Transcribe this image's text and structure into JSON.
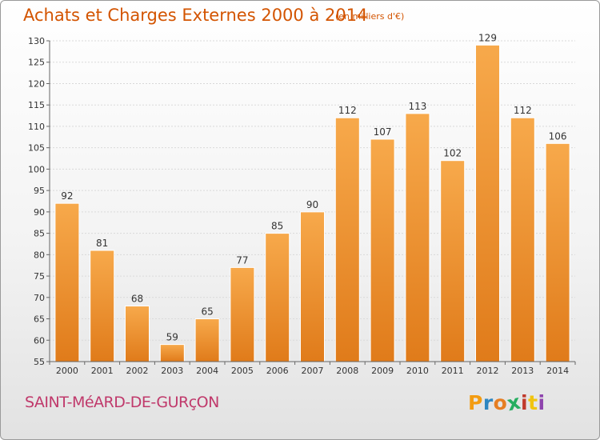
{
  "title": "Achats et Charges Externes 2000 à 2014",
  "subtitle": "(en milliers d'€)",
  "place": "SAINT-MéARD-DE-GURçON",
  "logo": {
    "letters": [
      "P",
      "r",
      "o",
      "x",
      "i",
      "t",
      "i"
    ],
    "colors": [
      "#f39c12",
      "#2e86c1",
      "#e67e22",
      "#27ae60",
      "#c0392b",
      "#f1c40f",
      "#8e44ad"
    ]
  },
  "colors": {
    "bar_light": "#f7a94b",
    "bar_dark": "#e07b1a",
    "title": "#d35400",
    "place": "#c0396b"
  },
  "chart_data": {
    "type": "bar",
    "categories": [
      "2000",
      "2001",
      "2002",
      "2003",
      "2004",
      "2005",
      "2006",
      "2007",
      "2008",
      "2009",
      "2010",
      "2011",
      "2012",
      "2013",
      "2014"
    ],
    "values": [
      92,
      81,
      68,
      59,
      65,
      77,
      85,
      90,
      112,
      107,
      113,
      102,
      129,
      112,
      106
    ],
    "data_labels": [
      "92",
      "81",
      "68",
      "59",
      "65",
      "77",
      "85",
      "90",
      "112",
      "107",
      "113",
      "102",
      "129",
      "112",
      "106"
    ],
    "yticks": [
      55,
      60,
      65,
      70,
      75,
      80,
      85,
      90,
      95,
      100,
      105,
      110,
      115,
      120,
      125,
      130
    ],
    "ylim": [
      55,
      130
    ],
    "xlabel": "",
    "ylabel": "",
    "grid": true
  }
}
